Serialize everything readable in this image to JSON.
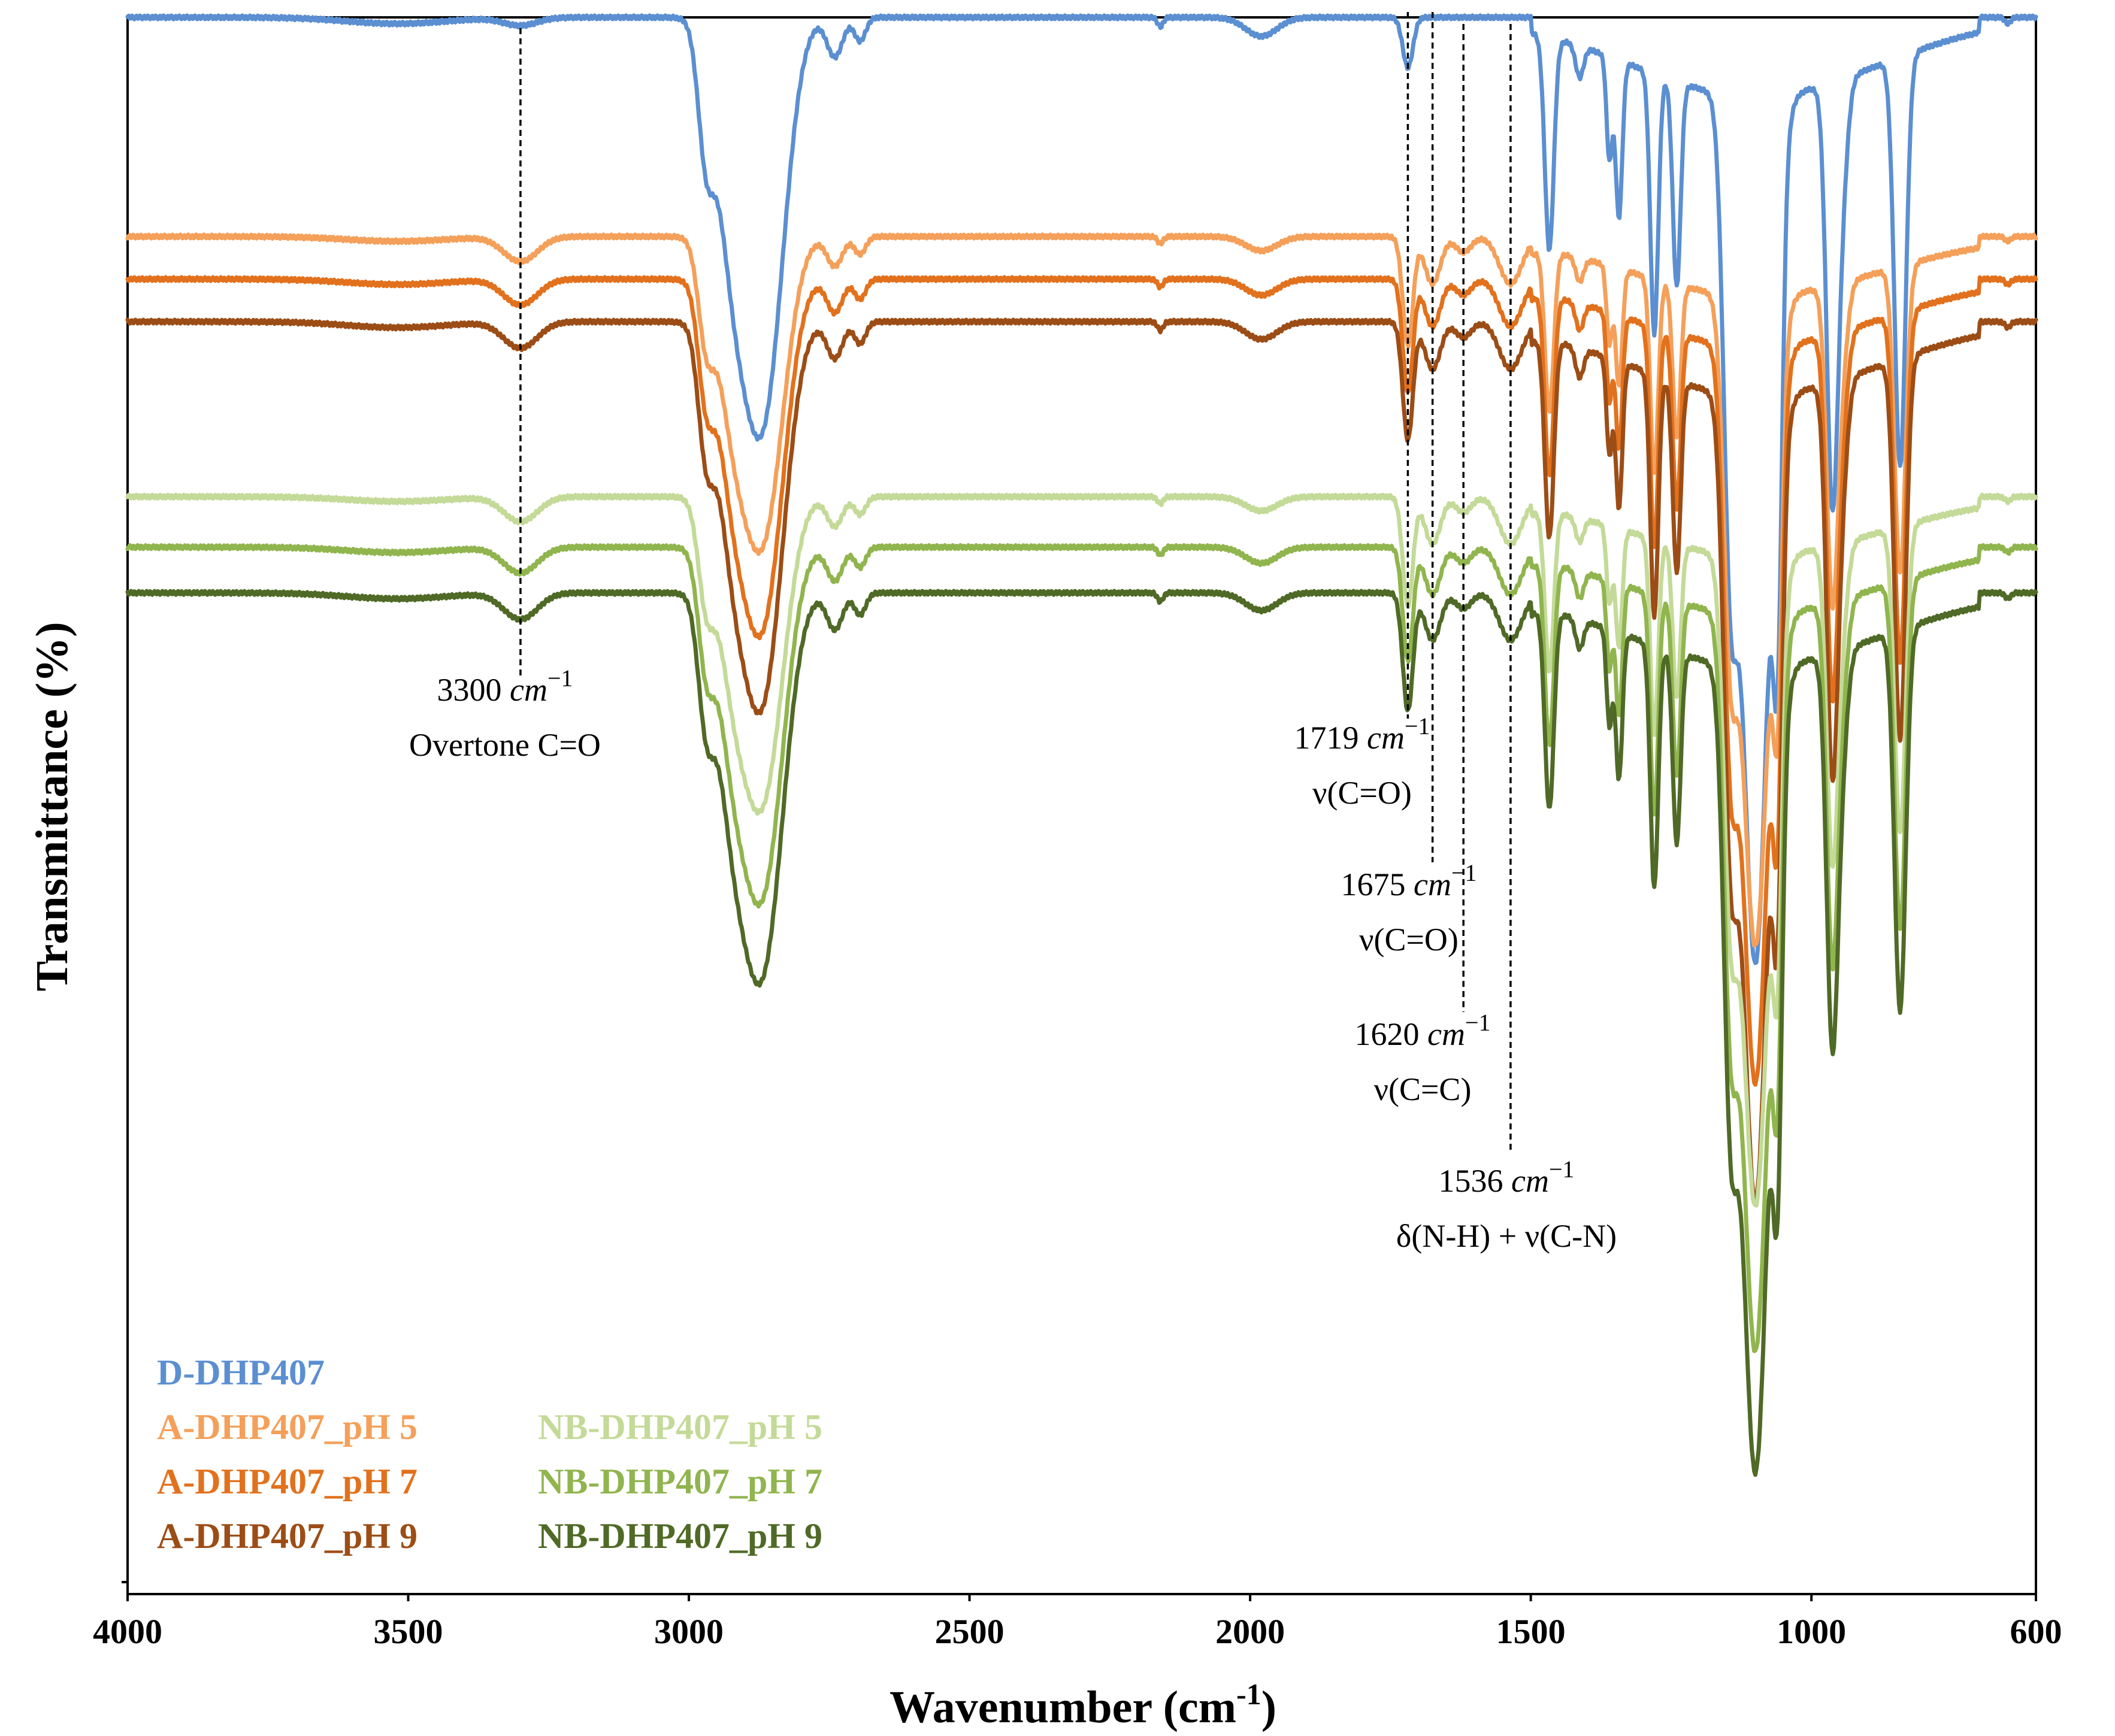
{
  "chart_data": {
    "type": "line",
    "title": "",
    "xlabel": "Wavenumber (cm",
    "xlabel_sup": "-1",
    "xlabel_end": ")",
    "ylabel": "Transmittance (%)",
    "xlim": [
      4000,
      600
    ],
    "x_reversed": true,
    "xticks": [
      4000,
      3500,
      3000,
      2500,
      2000,
      1500,
      1000,
      600
    ],
    "grid": false,
    "legend_position": "bottom-left",
    "series": [
      {
        "name": "D-DHP407",
        "color": "#5b8fd1",
        "baseline": 0.0,
        "scale": 1.0
      },
      {
        "name": "A-DHP407_pH 5",
        "color": "#f4a05a",
        "baseline": 0.139,
        "scale": 0.75
      },
      {
        "name": "A-DHP407_pH 7",
        "color": "#e2711d",
        "baseline": 0.166,
        "scale": 0.85
      },
      {
        "name": "A-DHP407_pH 9",
        "color": "#9c4d16",
        "baseline": 0.193,
        "scale": 0.93
      },
      {
        "name": "NB-DHP407_pH 5",
        "color": "#c4da98",
        "baseline": 0.304,
        "scale": 0.75
      },
      {
        "name": "NB-DHP407_pH 7",
        "color": "#90b54e",
        "baseline": 0.336,
        "scale": 0.85
      },
      {
        "name": "NB-DHP407_pH 9",
        "color": "#4f6a26",
        "baseline": 0.365,
        "scale": 0.93
      }
    ],
    "peaks_cm-1": [
      3300,
      2970,
      2880,
      2740,
      2695,
      1980,
      1719,
      1675,
      1620,
      1536,
      1467,
      1343,
      1280,
      1240,
      1145,
      1100,
      1060,
      963,
      842
    ],
    "annotations": [
      {
        "wavenumber": 3300,
        "value": "3300",
        "unit": "cm",
        "sup": "−1",
        "label": "Overtone C=O"
      },
      {
        "wavenumber": 1719,
        "value": "1719",
        "unit": "cm",
        "sup": "−1",
        "label": "ν(C=O)"
      },
      {
        "wavenumber": 1675,
        "value": "1675",
        "unit": "cm",
        "sup": "−1",
        "label": "ν(C=O)"
      },
      {
        "wavenumber": 1620,
        "value": "1620",
        "unit": "cm",
        "sup": "−1",
        "label": "ν(C=C)"
      },
      {
        "wavenumber": 1536,
        "value": "1536",
        "unit": "cm",
        "sup": "−1",
        "label": "δ(N-H) + ν(C-N)"
      }
    ]
  }
}
